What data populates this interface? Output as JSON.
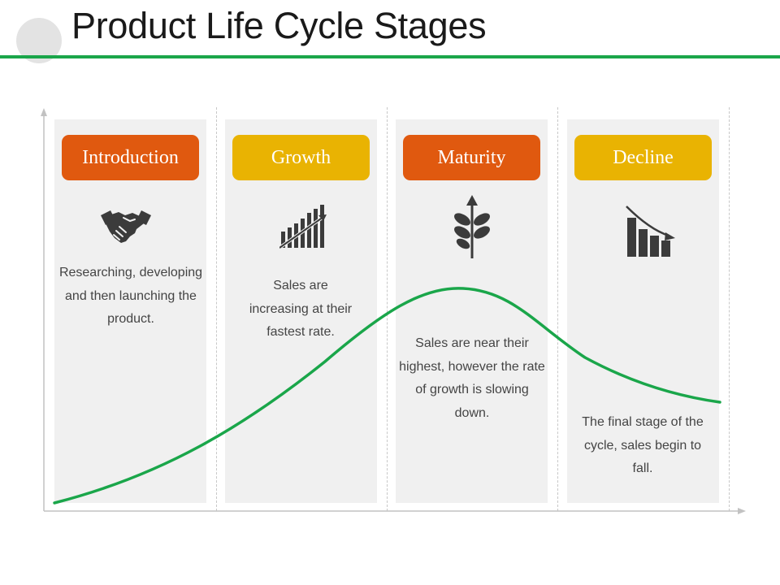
{
  "title": "Product Life Cycle Stages",
  "colors": {
    "accent_green": "#1aa64a",
    "orange": "#e0590f",
    "amber": "#e9b302",
    "panel_bg": "#f0f0f0",
    "icon_dark": "#3b3b3b"
  },
  "stages": [
    {
      "label": "Introduction",
      "icon": "handshake-icon",
      "color": "#e0590f",
      "description": [
        "Researching, developing",
        "and then launching the",
        "product."
      ]
    },
    {
      "label": "Growth",
      "icon": "growth-bar-chart-icon",
      "color": "#e9b302",
      "description": [
        "Sales are",
        "increasing at their",
        "fastest rate."
      ]
    },
    {
      "label": "Maturity",
      "icon": "plant-arrow-icon",
      "color": "#e0590f",
      "description": [
        "Sales are near their",
        "highest, however the rate",
        "of growth is slowing",
        "down."
      ]
    },
    {
      "label": "Decline",
      "icon": "decline-bar-chart-icon",
      "color": "#e9b302",
      "description": [
        "The final stage of the",
        "cycle, sales begin to",
        "fall."
      ]
    }
  ]
}
